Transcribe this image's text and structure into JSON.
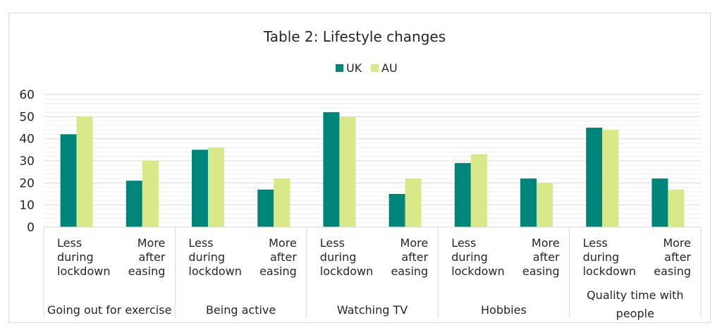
{
  "chart_data": {
    "type": "bar",
    "title": "Table 2: Lifestyle changes",
    "xlabel": "",
    "ylabel": "",
    "ylim": [
      0,
      60
    ],
    "yticks": [
      0,
      10,
      20,
      30,
      40,
      50,
      60
    ],
    "grid": true,
    "legend_position": "top",
    "groups": [
      {
        "label": "Going out for exercise",
        "sublabels": [
          "Less during lockdown",
          "More after easing"
        ]
      },
      {
        "label": "Being active",
        "sublabels": [
          "Less during lockdown",
          "More after easing"
        ]
      },
      {
        "label": "Watching TV",
        "sublabels": [
          "Less during lockdown",
          "More after easing"
        ]
      },
      {
        "label": "Hobbies",
        "sublabels": [
          "Less during lockdown",
          "More after easing"
        ]
      },
      {
        "label": "Quality time with people",
        "sublabels": [
          "Less during lockdown",
          "More after easing"
        ]
      }
    ],
    "subcategory_lines": {
      "Less during lockdown": [
        "Less",
        "during",
        "lockdown"
      ],
      "More after easing": [
        "More",
        "after",
        "easing"
      ]
    },
    "group_label_lines": {
      "Quality time with people": [
        "Quality time with",
        "people"
      ]
    },
    "series": [
      {
        "name": "UK",
        "color": "#00857a",
        "values": [
          42,
          21,
          35,
          17,
          52,
          15,
          29,
          22,
          45,
          22
        ]
      },
      {
        "name": "AU",
        "color": "#d9e98a",
        "values": [
          50,
          30,
          36,
          22,
          50,
          22,
          33,
          20,
          44,
          17
        ]
      }
    ]
  }
}
